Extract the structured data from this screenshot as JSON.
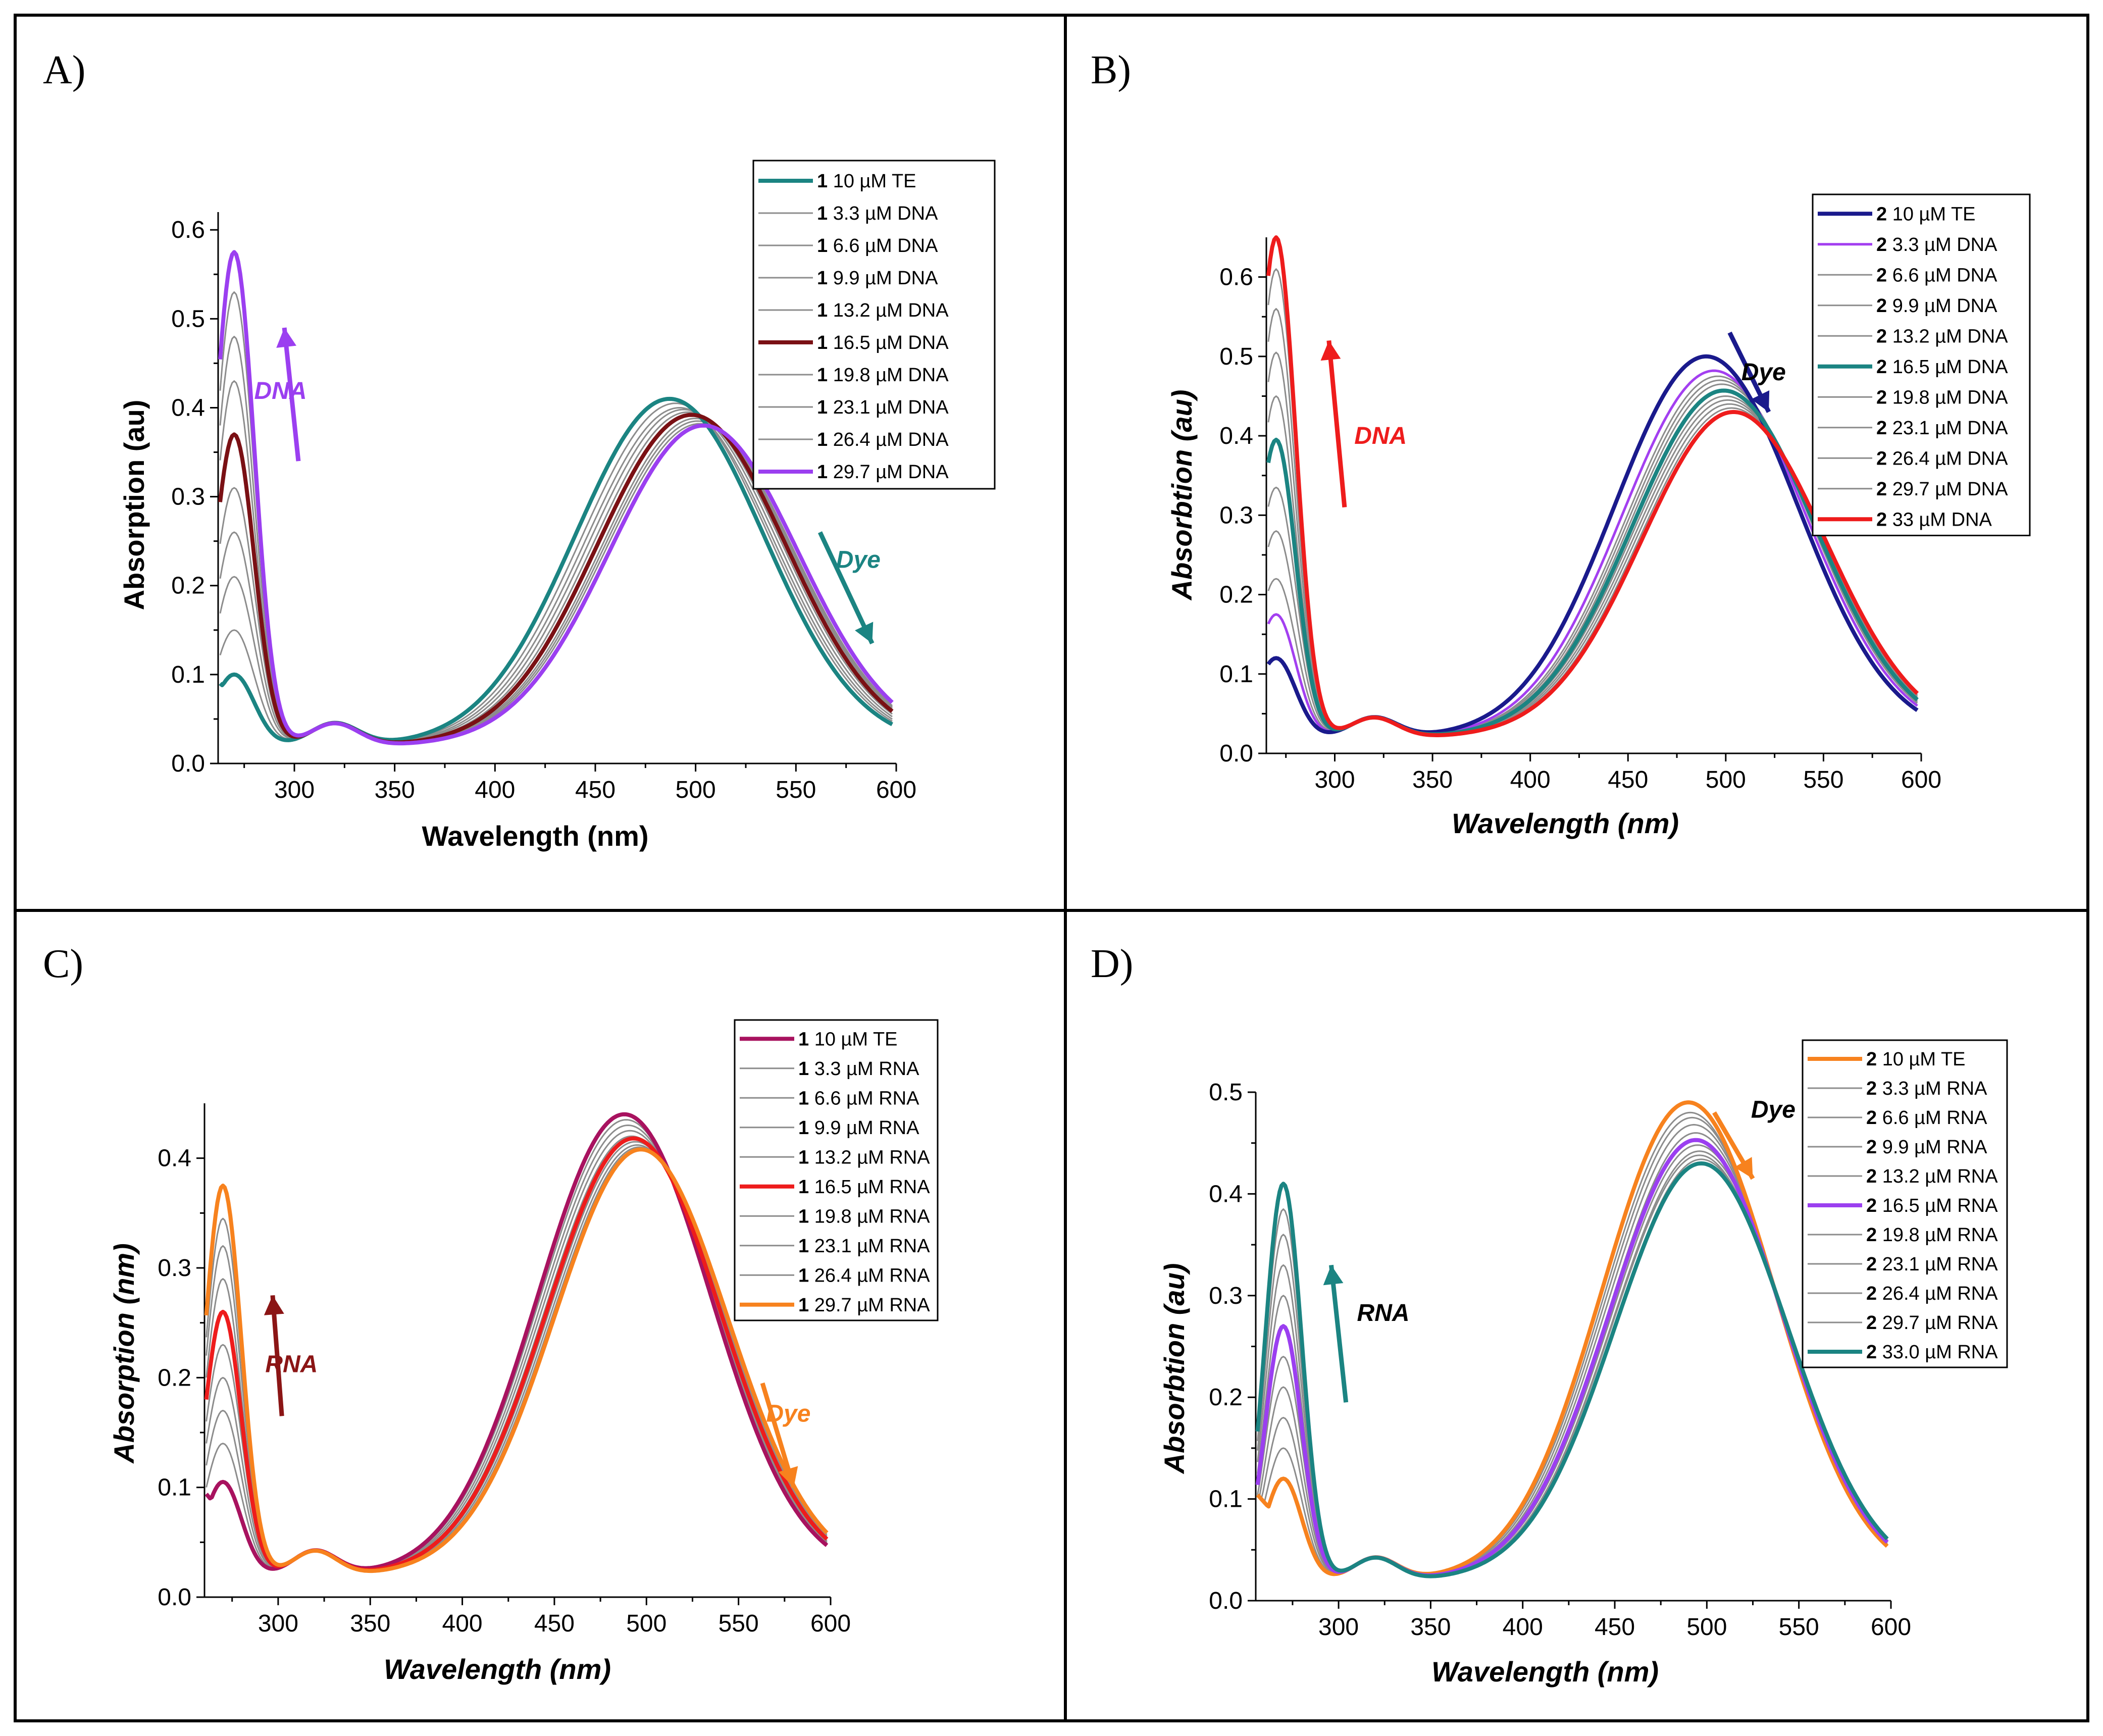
{
  "chart_data": [
    {
      "type": "line",
      "panel_label": "A)",
      "xlabel": "Wavelength (nm)",
      "ylabel": "Absorption (au)",
      "italic_axes": false,
      "xlim": [
        262,
        600
      ],
      "ylim": [
        0,
        0.62
      ],
      "xticks": [
        300,
        350,
        400,
        450,
        500,
        550,
        600
      ],
      "yticks": [
        0.0,
        0.1,
        0.2,
        0.3,
        0.4,
        0.5,
        0.6
      ],
      "legend_position": "top-right",
      "series": [
        {
          "num": "1",
          "label": "10 µM TE",
          "color": "#1b8482",
          "width": 8,
          "peak_uv": 0.08,
          "peak_vis": 0.39,
          "lam_max": 487
        },
        {
          "num": "1",
          "label": "3.3 µM DNA",
          "color": "#8c8c8c",
          "width": 3,
          "peak_uv": 0.13,
          "peak_vis": 0.385,
          "lam_max": 490
        },
        {
          "num": "1",
          "label": "6.6 µM DNA",
          "color": "#8c8c8c",
          "width": 3,
          "peak_uv": 0.19,
          "peak_vis": 0.38,
          "lam_max": 492
        },
        {
          "num": "1",
          "label": "9.9 µM DNA",
          "color": "#8c8c8c",
          "width": 3,
          "peak_uv": 0.24,
          "peak_vis": 0.378,
          "lam_max": 494
        },
        {
          "num": "1",
          "label": "13.2 µM DNA",
          "color": "#8c8c8c",
          "width": 3,
          "peak_uv": 0.29,
          "peak_vis": 0.375,
          "lam_max": 496
        },
        {
          "num": "1",
          "label": "16.5 µM DNA",
          "color": "#7a1014",
          "width": 8,
          "peak_uv": 0.35,
          "peak_vis": 0.372,
          "lam_max": 498
        },
        {
          "num": "1",
          "label": "19.8 µM DNA",
          "color": "#8c8c8c",
          "width": 3,
          "peak_uv": 0.41,
          "peak_vis": 0.368,
          "lam_max": 500
        },
        {
          "num": "1",
          "label": "23.1 µM DNA",
          "color": "#8c8c8c",
          "width": 3,
          "peak_uv": 0.46,
          "peak_vis": 0.365,
          "lam_max": 501
        },
        {
          "num": "1",
          "label": "26.4 µM DNA",
          "color": "#8c8c8c",
          "width": 3,
          "peak_uv": 0.51,
          "peak_vis": 0.362,
          "lam_max": 502
        },
        {
          "num": "1",
          "label": "29.7 µM DNA",
          "color": "#9b3ff0",
          "width": 8,
          "peak_uv": 0.555,
          "peak_vis": 0.36,
          "lam_max": 504
        }
      ],
      "annotations": [
        {
          "text": "DNA",
          "color": "#9b3ff0",
          "arrow": "up",
          "x_data": 280,
          "y_data": 0.41,
          "arrow_from": [
            302,
            0.34
          ],
          "arrow_to": [
            295,
            0.49
          ]
        },
        {
          "text": "Dye",
          "color": "#1b8482",
          "arrow": "down",
          "x_data": 570,
          "y_data": 0.22,
          "arrow_from": [
            562,
            0.26
          ],
          "arrow_to": [
            588,
            0.135
          ]
        }
      ]
    },
    {
      "type": "line",
      "panel_label": "B)",
      "xlabel": "Wavelength (nm)",
      "ylabel": "Absorbtion (au)",
      "italic_axes": true,
      "xlim": [
        265,
        600
      ],
      "ylim": [
        0,
        0.65
      ],
      "xticks": [
        300,
        350,
        400,
        450,
        500,
        550,
        600
      ],
      "yticks": [
        0.0,
        0.1,
        0.2,
        0.3,
        0.4,
        0.5,
        0.6
      ],
      "legend_position": "top-right",
      "series": [
        {
          "num": "2",
          "label": "10 µM TE",
          "color": "#1a1a8c",
          "width": 8,
          "peak_uv": 0.1,
          "peak_vis": 0.48,
          "lam_max": 490
        },
        {
          "num": "2",
          "label": "3.3 µM DNA",
          "color": "#a33ff0",
          "width": 5,
          "peak_uv": 0.155,
          "peak_vis": 0.462,
          "lam_max": 494
        },
        {
          "num": "2",
          "label": "6.6 µM DNA",
          "color": "#8c8c8c",
          "width": 3,
          "peak_uv": 0.2,
          "peak_vis": 0.455,
          "lam_max": 496
        },
        {
          "num": "2",
          "label": "9.9 µM DNA",
          "color": "#8c8c8c",
          "width": 3,
          "peak_uv": 0.26,
          "peak_vis": 0.45,
          "lam_max": 497
        },
        {
          "num": "2",
          "label": "13.2 µM DNA",
          "color": "#8c8c8c",
          "width": 3,
          "peak_uv": 0.315,
          "peak_vis": 0.445,
          "lam_max": 498
        },
        {
          "num": "2",
          "label": "16.5 µM DNA",
          "color": "#1b8482",
          "width": 8,
          "peak_uv": 0.375,
          "peak_vis": 0.437,
          "lam_max": 499
        },
        {
          "num": "2",
          "label": "19.8 µM DNA",
          "color": "#8c8c8c",
          "width": 3,
          "peak_uv": 0.43,
          "peak_vis": 0.43,
          "lam_max": 500
        },
        {
          "num": "2",
          "label": "23.1 µM DNA",
          "color": "#8c8c8c",
          "width": 3,
          "peak_uv": 0.485,
          "peak_vis": 0.425,
          "lam_max": 501
        },
        {
          "num": "2",
          "label": "26.4 µM DNA",
          "color": "#8c8c8c",
          "width": 3,
          "peak_uv": 0.54,
          "peak_vis": 0.42,
          "lam_max": 502
        },
        {
          "num": "2",
          "label": "29.7 µM DNA",
          "color": "#8c8c8c",
          "width": 3,
          "peak_uv": 0.59,
          "peak_vis": 0.415,
          "lam_max": 503
        },
        {
          "num": "2",
          "label": "33 µM DNA",
          "color": "#ee1c1c",
          "width": 8,
          "peak_uv": 0.63,
          "peak_vis": 0.41,
          "lam_max": 504
        }
      ],
      "annotations": [
        {
          "text": "DNA",
          "color": "#ee1c1c",
          "arrow": "up",
          "x_data": 310,
          "y_data": 0.39,
          "arrow_from": [
            305,
            0.31
          ],
          "arrow_to": [
            297,
            0.52
          ]
        },
        {
          "text": "Dye",
          "color": "#1a1a8c",
          "arrow": "down",
          "x_data": 508,
          "y_data": 0.47,
          "arrow_from": [
            502,
            0.53
          ],
          "arrow_to": [
            522,
            0.43
          ]
        }
      ]
    },
    {
      "type": "line",
      "panel_label": "C)",
      "xlabel": "Wavelength (nm)",
      "ylabel": "Absorption (nm)",
      "italic_axes": true,
      "xlim": [
        260,
        600
      ],
      "ylim": [
        0,
        0.45
      ],
      "xticks": [
        300,
        350,
        400,
        450,
        500,
        550,
        600
      ],
      "yticks": [
        0.0,
        0.1,
        0.2,
        0.3,
        0.4
      ],
      "legend_position": "top-right",
      "series": [
        {
          "num": "1",
          "label": "10 µM TE",
          "color": "#a8125f",
          "width": 8,
          "peak_uv": 0.085,
          "peak_vis": 0.42,
          "lam_max": 488
        },
        {
          "num": "1",
          "label": "3.3 µM RNA",
          "color": "#8c8c8c",
          "width": 3,
          "peak_uv": 0.12,
          "peak_vis": 0.415,
          "lam_max": 489
        },
        {
          "num": "1",
          "label": "6.6 µM RNA",
          "color": "#8c8c8c",
          "width": 3,
          "peak_uv": 0.15,
          "peak_vis": 0.41,
          "lam_max": 490
        },
        {
          "num": "1",
          "label": "9.9 µM RNA",
          "color": "#8c8c8c",
          "width": 3,
          "peak_uv": 0.18,
          "peak_vis": 0.405,
          "lam_max": 491
        },
        {
          "num": "1",
          "label": "13.2 µM RNA",
          "color": "#8c8c8c",
          "width": 3,
          "peak_uv": 0.21,
          "peak_vis": 0.4,
          "lam_max": 492
        },
        {
          "num": "1",
          "label": "16.5 µM RNA",
          "color": "#ee1c1c",
          "width": 8,
          "peak_uv": 0.24,
          "peak_vis": 0.398,
          "lam_max": 493
        },
        {
          "num": "1",
          "label": "19.8 µM RNA",
          "color": "#8c8c8c",
          "width": 3,
          "peak_uv": 0.27,
          "peak_vis": 0.395,
          "lam_max": 494
        },
        {
          "num": "1",
          "label": "23.1 µM RNA",
          "color": "#8c8c8c",
          "width": 3,
          "peak_uv": 0.3,
          "peak_vis": 0.392,
          "lam_max": 495
        },
        {
          "num": "1",
          "label": "26.4 µM RNA",
          "color": "#8c8c8c",
          "width": 3,
          "peak_uv": 0.325,
          "peak_vis": 0.39,
          "lam_max": 496
        },
        {
          "num": "1",
          "label": "29.7 µM RNA",
          "color": "#f7821e",
          "width": 8,
          "peak_uv": 0.355,
          "peak_vis": 0.388,
          "lam_max": 497
        }
      ],
      "annotations": [
        {
          "text": "RNA",
          "color": "#8b1515",
          "arrow": "up",
          "x_data": 293,
          "y_data": 0.205,
          "arrow_from": [
            302,
            0.165
          ],
          "arrow_to": [
            297,
            0.275
          ]
        },
        {
          "text": "Dye",
          "color": "#f7821e",
          "arrow": "down",
          "x_data": 565,
          "y_data": 0.16,
          "arrow_from": [
            563,
            0.195
          ],
          "arrow_to": [
            580,
            0.1
          ]
        }
      ]
    },
    {
      "type": "line",
      "panel_label": "D)",
      "xlabel": "Wavelength (nm)",
      "ylabel": "Absorbtion (au)",
      "italic_axes": true,
      "xlim": [
        255,
        600
      ],
      "ylim": [
        0,
        0.5
      ],
      "xticks": [
        300,
        350,
        400,
        450,
        500,
        550,
        600
      ],
      "yticks": [
        0.0,
        0.1,
        0.2,
        0.3,
        0.4,
        0.5
      ],
      "legend_position": "top-right",
      "series": [
        {
          "num": "2",
          "label": "10 µM TE",
          "color": "#f7821e",
          "width": 8,
          "peak_uv": 0.1,
          "peak_vis": 0.47,
          "lam_max": 490
        },
        {
          "num": "2",
          "label": "3.3 µM RNA",
          "color": "#8c8c8c",
          "width": 3,
          "peak_uv": 0.13,
          "peak_vis": 0.46,
          "lam_max": 491
        },
        {
          "num": "2",
          "label": "6.6 µM RNA",
          "color": "#8c8c8c",
          "width": 3,
          "peak_uv": 0.16,
          "peak_vis": 0.455,
          "lam_max": 492
        },
        {
          "num": "2",
          "label": "9.9 µM RNA",
          "color": "#8c8c8c",
          "width": 3,
          "peak_uv": 0.19,
          "peak_vis": 0.448,
          "lam_max": 493
        },
        {
          "num": "2",
          "label": "13.2 µM RNA",
          "color": "#8c8c8c",
          "width": 3,
          "peak_uv": 0.22,
          "peak_vis": 0.44,
          "lam_max": 494
        },
        {
          "num": "2",
          "label": "16.5 µM RNA",
          "color": "#9b3ff0",
          "width": 8,
          "peak_uv": 0.25,
          "peak_vis": 0.433,
          "lam_max": 494
        },
        {
          "num": "2",
          "label": "19.8 µM RNA",
          "color": "#8c8c8c",
          "width": 3,
          "peak_uv": 0.28,
          "peak_vis": 0.428,
          "lam_max": 495
        },
        {
          "num": "2",
          "label": "23.1 µM RNA",
          "color": "#8c8c8c",
          "width": 3,
          "peak_uv": 0.31,
          "peak_vis": 0.422,
          "lam_max": 496
        },
        {
          "num": "2",
          "label": "26.4 µM RNA",
          "color": "#8c8c8c",
          "width": 3,
          "peak_uv": 0.34,
          "peak_vis": 0.418,
          "lam_max": 496
        },
        {
          "num": "2",
          "label": "29.7 µM RNA",
          "color": "#8c8c8c",
          "width": 3,
          "peak_uv": 0.365,
          "peak_vis": 0.414,
          "lam_max": 497
        },
        {
          "num": "2",
          "label": "33.0 µM RNA",
          "color": "#1b8482",
          "width": 8,
          "peak_uv": 0.39,
          "peak_vis": 0.41,
          "lam_max": 497
        }
      ],
      "annotations": [
        {
          "text": "RNA",
          "color": "#1b8482",
          "arrow": "up",
          "x_data": 310,
          "y_data": 0.275,
          "arrow_from": [
            304,
            0.195
          ],
          "arrow_to": [
            296,
            0.33
          ]
        },
        {
          "text": "Dye",
          "color": "#f7821e",
          "arrow": "down",
          "x_data": 524,
          "y_data": 0.475,
          "arrow_from": [
            504,
            0.48
          ],
          "arrow_to": [
            525,
            0.415
          ]
        }
      ]
    }
  ]
}
